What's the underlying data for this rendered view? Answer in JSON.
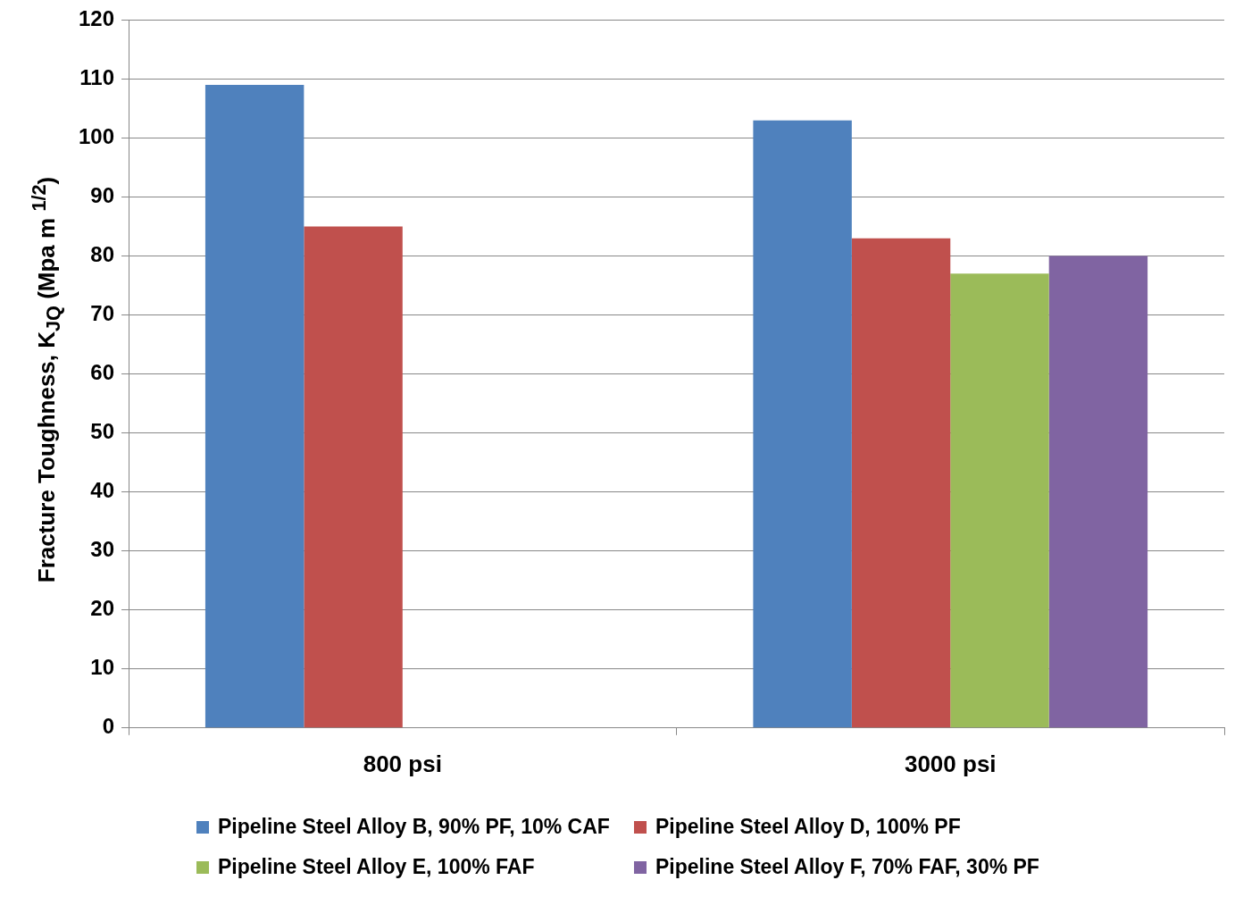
{
  "chart_data": {
    "type": "bar",
    "ylabel": "Fracture Toughness, K$_{JQ}$ (Mpa m $^{1/2}$)",
    "categories": [
      "800 psi",
      "3000 psi"
    ],
    "series": [
      {
        "name": "Pipeline Steel Alloy B, 90% PF, 10% CAF",
        "color": "#4f81bd",
        "values": [
          109,
          103
        ]
      },
      {
        "name": "Pipeline Steel Alloy D, 100% PF",
        "color": "#c0504d",
        "values": [
          85,
          83
        ]
      },
      {
        "name": "Pipeline Steel Alloy E, 100% FAF",
        "color": "#9bbb59",
        "values": [
          null,
          77
        ]
      },
      {
        "name": "Pipeline Steel Alloy F, 70% FAF, 30% PF",
        "color": "#8064a2",
        "values": [
          null,
          80
        ]
      }
    ],
    "ylim": [
      0,
      120
    ],
    "yticks": [
      0,
      10,
      20,
      30,
      40,
      50,
      60,
      70,
      80,
      90,
      100,
      110,
      120
    ],
    "grid": "y",
    "legend": "bottom"
  }
}
